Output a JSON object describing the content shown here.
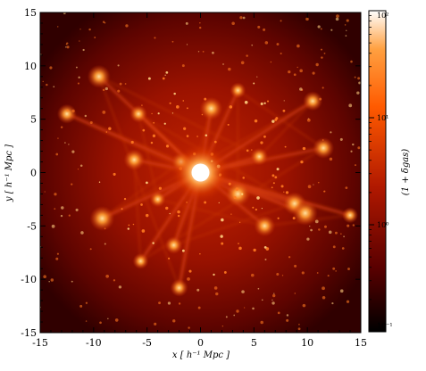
{
  "chart_data": {
    "type": "heatmap",
    "title": "",
    "xlabel": "x [ h⁻¹ Mpc ]",
    "ylabel": "y [ h⁻¹ Mpc ]",
    "xlim": [
      -15,
      15
    ],
    "ylim": [
      -15,
      15
    ],
    "xticks": [
      -15,
      -10,
      -5,
      0,
      5,
      10,
      15
    ],
    "yticks": [
      -15,
      -10,
      -5,
      0,
      5,
      10,
      15
    ],
    "xtick_labels": [
      "-15",
      "-10",
      "-5",
      "0",
      "5",
      "10",
      "15"
    ],
    "ytick_labels": [
      "-15",
      "-10",
      "-5",
      "0",
      "5",
      "10",
      "15"
    ],
    "colorbar": {
      "label": "(1 + δgas)",
      "scale": "log",
      "range": [
        0.1,
        100
      ],
      "ticks": [
        0.1,
        1,
        10,
        100
      ],
      "tick_labels": [
        "10⁻¹",
        "10⁰",
        "10¹",
        "10²"
      ],
      "colors": [
        "#000000",
        "#5a0000",
        "#b01800",
        "#ff5a00",
        "#ffa040",
        "#ffffff"
      ]
    },
    "map_description_values": {
      "central_peak": [
        0,
        0
      ],
      "bright_clumps": [
        [
          3.5,
          7.7
        ],
        [
          -5.8,
          5.5
        ],
        [
          10.5,
          6.7
        ],
        [
          11.5,
          2.3
        ],
        [
          8.8,
          -2.9
        ],
        [
          -9.2,
          -4.3
        ],
        [
          -5.6,
          -8.3
        ],
        [
          -2.5,
          -6.8
        ],
        [
          -1.8,
          1.0
        ],
        [
          -6.2,
          1.2
        ],
        [
          1.0,
          6.0
        ],
        [
          9.8,
          -3.8
        ],
        [
          14.0,
          -4.0
        ],
        [
          -2.0,
          -10.8
        ],
        [
          -12.5,
          5.5
        ],
        [
          6.0,
          -5.0
        ],
        [
          -9.5,
          9.0
        ],
        [
          3.5,
          -2.0
        ],
        [
          -4.0,
          -2.5
        ],
        [
          5.5,
          1.5
        ]
      ]
    }
  }
}
